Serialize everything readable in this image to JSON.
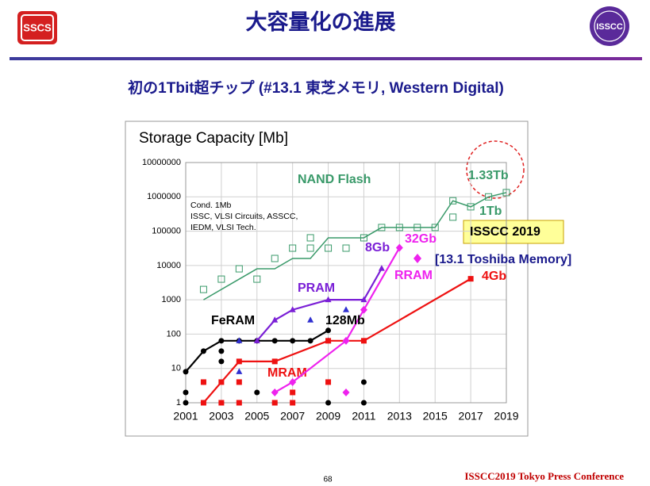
{
  "header": {
    "logo": "SSCS",
    "title": "大容量化の進展",
    "badge": "ISSCC",
    "subtitle": "初の1Tbit超チップ (#13.1 東芝メモリ, Western Digital)"
  },
  "footer": {
    "page": "68",
    "conference": "ISSCC2019 Tokyo Press Conference"
  },
  "chart_data": {
    "type": "line",
    "title": "Storage Capacity [Mb]",
    "ylog": true,
    "grid": true,
    "xlim": [
      2001,
      2019
    ],
    "xticks": [
      2001,
      2003,
      2005,
      2007,
      2009,
      2011,
      2013,
      2015,
      2017,
      2019
    ],
    "ylim": [
      1,
      10000000
    ],
    "yticks": [
      1,
      10,
      100,
      1000,
      10000,
      100000,
      1000000,
      10000000
    ],
    "series": [
      {
        "name": "NAND Flash",
        "color": "#3a9a6a",
        "line": true,
        "marker": "none",
        "x": [
          2002,
          2004,
          2005,
          2006,
          2007,
          2008,
          2009,
          2010,
          2011,
          2012,
          2013,
          2014,
          2015,
          2016,
          2017,
          2018,
          2019
        ],
        "values": [
          1000,
          4000,
          8000,
          8000,
          16000,
          16000,
          64000,
          64000,
          64000,
          128000,
          128000,
          128000,
          128000,
          768000,
          512000,
          1000000,
          1330000
        ]
      },
      {
        "color": "#3a9a6a",
        "line": false,
        "marker": "square-open",
        "x": [
          2002,
          2003,
          2004,
          2005,
          2006,
          2007,
          2008,
          2008,
          2009,
          2010,
          2011,
          2012,
          2013,
          2014,
          2015,
          2016,
          2016,
          2017,
          2018,
          2019
        ],
        "values": [
          2000,
          4000,
          8000,
          4000,
          16000,
          32000,
          64000,
          32000,
          32000,
          32000,
          64000,
          128000,
          128000,
          128000,
          128000,
          256000,
          768000,
          512000,
          1000000,
          1330000
        ]
      },
      {
        "name": "FeRAM",
        "color": "#000000",
        "line": true,
        "marker": "circle",
        "x": [
          2001,
          2002,
          2003,
          2004,
          2005,
          2006,
          2007,
          2008,
          2009
        ],
        "values": [
          8,
          32,
          64,
          64,
          64,
          64,
          64,
          64,
          128
        ]
      },
      {
        "color": "#000000",
        "line": false,
        "marker": "circle",
        "x": [
          2001,
          2001,
          2002,
          2003,
          2003,
          2003,
          2005,
          2006,
          2009,
          2011,
          2011
        ],
        "values": [
          1,
          2,
          4,
          16,
          32,
          1,
          2,
          1,
          1,
          4,
          1
        ]
      },
      {
        "name": "PRAM",
        "color": "#7a1fd6",
        "line": true,
        "marker": "triangle",
        "x": [
          2005,
          2006,
          2007,
          2009,
          2011,
          2012
        ],
        "values": [
          64,
          256,
          512,
          1000,
          1000,
          8192
        ]
      },
      {
        "color": "#3030d0",
        "line": false,
        "marker": "triangle",
        "x": [
          2004,
          2004,
          2008,
          2010,
          2009
        ],
        "values": [
          64,
          8,
          256,
          512,
          64
        ]
      },
      {
        "name": "MRAM",
        "color": "#ee1111",
        "line": true,
        "marker": "square",
        "x": [
          2002,
          2003,
          2004,
          2006,
          2009,
          2011,
          2017
        ],
        "values": [
          1,
          4,
          16,
          16,
          64,
          64,
          4096
        ]
      },
      {
        "color": "#ee1111",
        "line": false,
        "marker": "square",
        "x": [
          2002,
          2004,
          2004,
          2006,
          2007,
          2007,
          2009,
          2003
        ],
        "values": [
          4,
          4,
          1,
          1,
          2,
          1,
          4,
          1
        ]
      },
      {
        "name": "RRAM",
        "color": "#ee22ee",
        "line": true,
        "marker": "diamond",
        "x": [
          2006,
          2007,
          2010,
          2011,
          2013
        ],
        "values": [
          2,
          4,
          64,
          512,
          32768
        ]
      },
      {
        "color": "#ee22ee",
        "line": false,
        "marker": "diamond",
        "x": [
          2010
        ],
        "values": [
          2
        ]
      }
    ],
    "annotations": [
      "1.33Tb",
      "1Tb",
      "32Gb",
      "8Gb",
      "4Gb",
      "128Mb",
      "ISSCC 2019",
      "[13.1 Toshiba Memory]"
    ],
    "note": [
      "Cond. 1Mb",
      "ISSC, VLSI Circuits, ASSCC,",
      "IEDM, VLSI Tech."
    ]
  }
}
